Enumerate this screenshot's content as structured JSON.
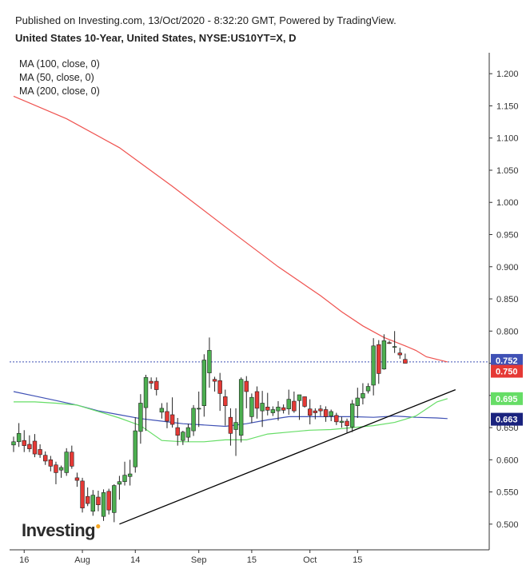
{
  "header": {
    "published": "Published on Investing.com, 13/Oct/2020 - 8:32:20 GMT, Powered by TradingView.",
    "title": "United States 10-Year, United States, NYSE:US10YT=X, D"
  },
  "legend": [
    "MA (100, close, 0)",
    "MA (50, close, 0)",
    "MA (200, close, 0)"
  ],
  "logo": "Investing",
  "colors": {
    "up": "#4caf50",
    "down": "#e53935",
    "ma100": "#3f51b5",
    "ma50": "#66dd66",
    "ma200": "#ef5350",
    "trend": "#000000",
    "price_line": "#3f51b5"
  },
  "chart_data": {
    "type": "candlestick",
    "ylim": [
      0.47,
      1.24
    ],
    "y_ticks": [
      "1.200",
      "1.150",
      "1.100",
      "1.050",
      "1.000",
      "0.950",
      "0.900",
      "0.850",
      "0.800",
      "0.750",
      "0.700",
      "0.650",
      "0.600",
      "0.550",
      "0.500"
    ],
    "x_ticks": [
      {
        "label": "16",
        "idx": 2
      },
      {
        "label": "Aug",
        "idx": 13
      },
      {
        "label": "14",
        "idx": 23
      },
      {
        "label": "Sep",
        "idx": 35
      },
      {
        "label": "15",
        "idx": 45
      },
      {
        "label": "Oct",
        "idx": 56
      },
      {
        "label": "15",
        "idx": 65
      }
    ],
    "candles": [
      [
        0.623,
        0.636,
        0.612,
        0.628
      ],
      [
        0.628,
        0.657,
        0.62,
        0.641
      ],
      [
        0.63,
        0.646,
        0.612,
        0.622
      ],
      [
        0.624,
        0.638,
        0.612,
        0.617
      ],
      [
        0.629,
        0.64,
        0.604,
        0.609
      ],
      [
        0.616,
        0.624,
        0.603,
        0.608
      ],
      [
        0.607,
        0.613,
        0.592,
        0.598
      ],
      [
        0.6,
        0.606,
        0.582,
        0.59
      ],
      [
        0.592,
        0.597,
        0.562,
        0.58
      ],
      [
        0.584,
        0.591,
        0.572,
        0.588
      ],
      [
        0.58,
        0.618,
        0.575,
        0.612
      ],
      [
        0.612,
        0.622,
        0.586,
        0.59
      ],
      [
        0.572,
        0.58,
        0.558,
        0.568
      ],
      [
        0.567,
        0.572,
        0.518,
        0.525
      ],
      [
        0.543,
        0.557,
        0.528,
        0.532
      ],
      [
        0.52,
        0.553,
        0.513,
        0.545
      ],
      [
        0.542,
        0.552,
        0.52,
        0.53
      ],
      [
        0.512,
        0.554,
        0.505,
        0.549
      ],
      [
        0.551,
        0.555,
        0.515,
        0.522
      ],
      [
        0.518,
        0.562,
        0.503,
        0.56
      ],
      [
        0.562,
        0.575,
        0.538,
        0.566
      ],
      [
        0.566,
        0.597,
        0.56,
        0.576
      ],
      [
        0.574,
        0.6,
        0.56,
        0.578
      ],
      [
        0.589,
        0.666,
        0.58,
        0.645
      ],
      [
        0.644,
        0.702,
        0.625,
        0.688
      ],
      [
        0.681,
        0.732,
        0.645,
        0.728
      ],
      [
        0.722,
        0.728,
        0.71,
        0.719
      ],
      [
        0.722,
        0.728,
        0.7,
        0.709
      ],
      [
        0.674,
        0.688,
        0.664,
        0.68
      ],
      [
        0.675,
        0.689,
        0.649,
        0.66
      ],
      [
        0.67,
        0.697,
        0.65,
        0.655
      ],
      [
        0.65,
        0.665,
        0.622,
        0.638
      ],
      [
        0.63,
        0.645,
        0.623,
        0.643
      ],
      [
        0.635,
        0.656,
        0.628,
        0.65
      ],
      [
        0.645,
        0.685,
        0.637,
        0.68
      ],
      [
        0.68,
        0.706,
        0.651,
        0.68
      ],
      [
        0.684,
        0.764,
        0.667,
        0.755
      ],
      [
        0.735,
        0.79,
        0.712,
        0.77
      ],
      [
        0.725,
        0.729,
        0.706,
        0.722
      ],
      [
        0.723,
        0.735,
        0.676,
        0.703
      ],
      [
        0.698,
        0.709,
        0.653,
        0.684
      ],
      [
        0.666,
        0.68,
        0.622,
        0.641
      ],
      [
        0.647,
        0.68,
        0.606,
        0.658
      ],
      [
        0.638,
        0.728,
        0.627,
        0.725
      ],
      [
        0.722,
        0.73,
        0.68,
        0.706
      ],
      [
        0.667,
        0.703,
        0.657,
        0.697
      ],
      [
        0.706,
        0.714,
        0.664,
        0.68
      ],
      [
        0.676,
        0.707,
        0.651,
        0.688
      ],
      [
        0.682,
        0.704,
        0.669,
        0.677
      ],
      [
        0.673,
        0.683,
        0.668,
        0.678
      ],
      [
        0.676,
        0.691,
        0.661,
        0.682
      ],
      [
        0.681,
        0.686,
        0.672,
        0.677
      ],
      [
        0.679,
        0.709,
        0.67,
        0.694
      ],
      [
        0.691,
        0.706,
        0.673,
        0.676
      ],
      [
        0.692,
        0.699,
        0.662,
        0.701
      ],
      [
        0.698,
        0.698,
        0.681,
        0.683
      ],
      [
        0.679,
        0.694,
        0.655,
        0.669
      ],
      [
        0.676,
        0.68,
        0.663,
        0.673
      ],
      [
        0.679,
        0.685,
        0.668,
        0.676
      ],
      [
        0.678,
        0.683,
        0.659,
        0.667
      ],
      [
        0.668,
        0.678,
        0.66,
        0.675
      ],
      [
        0.669,
        0.673,
        0.654,
        0.659
      ],
      [
        0.658,
        0.667,
        0.65,
        0.66
      ],
      [
        0.66,
        0.664,
        0.641,
        0.653
      ],
      [
        0.651,
        0.693,
        0.643,
        0.687
      ],
      [
        0.684,
        0.712,
        0.665,
        0.696
      ],
      [
        0.696,
        0.719,
        0.686,
        0.703
      ],
      [
        0.707,
        0.719,
        0.703,
        0.714
      ],
      [
        0.716,
        0.789,
        0.7,
        0.777
      ],
      [
        0.779,
        0.786,
        0.718,
        0.734
      ],
      [
        0.741,
        0.795,
        0.74,
        0.785
      ],
      [
        0.782,
        0.785,
        0.78,
        0.781
      ],
      [
        0.776,
        0.8,
        0.766,
        0.776
      ],
      [
        0.766,
        0.774,
        0.757,
        0.763
      ],
      [
        0.756,
        0.765,
        0.75,
        0.75
      ]
    ],
    "ma200": [
      [
        0,
        1.165
      ],
      [
        10,
        1.13
      ],
      [
        20,
        1.085
      ],
      [
        30,
        1.025
      ],
      [
        40,
        0.962
      ],
      [
        50,
        0.9
      ],
      [
        58,
        0.855
      ],
      [
        62,
        0.83
      ],
      [
        66,
        0.808
      ],
      [
        70,
        0.79
      ],
      [
        74,
        0.777
      ],
      [
        76,
        0.77
      ],
      [
        78,
        0.76
      ],
      [
        82,
        0.752
      ]
    ],
    "ma100": [
      [
        0,
        0.706
      ],
      [
        4,
        0.699
      ],
      [
        8,
        0.692
      ],
      [
        12,
        0.685
      ],
      [
        16,
        0.676
      ],
      [
        20,
        0.67
      ],
      [
        24,
        0.664
      ],
      [
        28,
        0.66
      ],
      [
        32,
        0.656
      ],
      [
        36,
        0.654
      ],
      [
        40,
        0.652
      ],
      [
        44,
        0.656
      ],
      [
        48,
        0.662
      ],
      [
        52,
        0.667
      ],
      [
        56,
        0.667
      ],
      [
        60,
        0.667
      ],
      [
        64,
        0.667
      ],
      [
        68,
        0.666
      ],
      [
        72,
        0.668
      ],
      [
        76,
        0.666
      ],
      [
        80,
        0.665
      ],
      [
        82,
        0.664
      ]
    ],
    "ma50": [
      [
        0,
        0.69
      ],
      [
        4,
        0.69
      ],
      [
        8,
        0.688
      ],
      [
        12,
        0.685
      ],
      [
        16,
        0.675
      ],
      [
        20,
        0.665
      ],
      [
        24,
        0.653
      ],
      [
        28,
        0.63
      ],
      [
        32,
        0.628
      ],
      [
        36,
        0.628
      ],
      [
        40,
        0.631
      ],
      [
        44,
        0.631
      ],
      [
        48,
        0.64
      ],
      [
        52,
        0.643
      ],
      [
        56,
        0.646
      ],
      [
        60,
        0.647
      ],
      [
        64,
        0.65
      ],
      [
        68,
        0.653
      ],
      [
        72,
        0.658
      ],
      [
        76,
        0.668
      ],
      [
        80,
        0.69
      ],
      [
        82,
        0.695
      ]
    ],
    "trendline": [
      [
        20,
        0.5
      ],
      [
        83.5,
        0.709
      ]
    ],
    "price_line": 0.752,
    "price_labels": [
      {
        "value": 0.752,
        "text": "0.752",
        "color": "#3f51b5"
      },
      {
        "value": 0.75,
        "text": "0.750",
        "color": "#e53935"
      },
      {
        "value": 0.695,
        "text": "0.695",
        "color": "#66dd66"
      },
      {
        "value": 0.663,
        "text": "0.663",
        "color": "#1a237e"
      }
    ]
  }
}
